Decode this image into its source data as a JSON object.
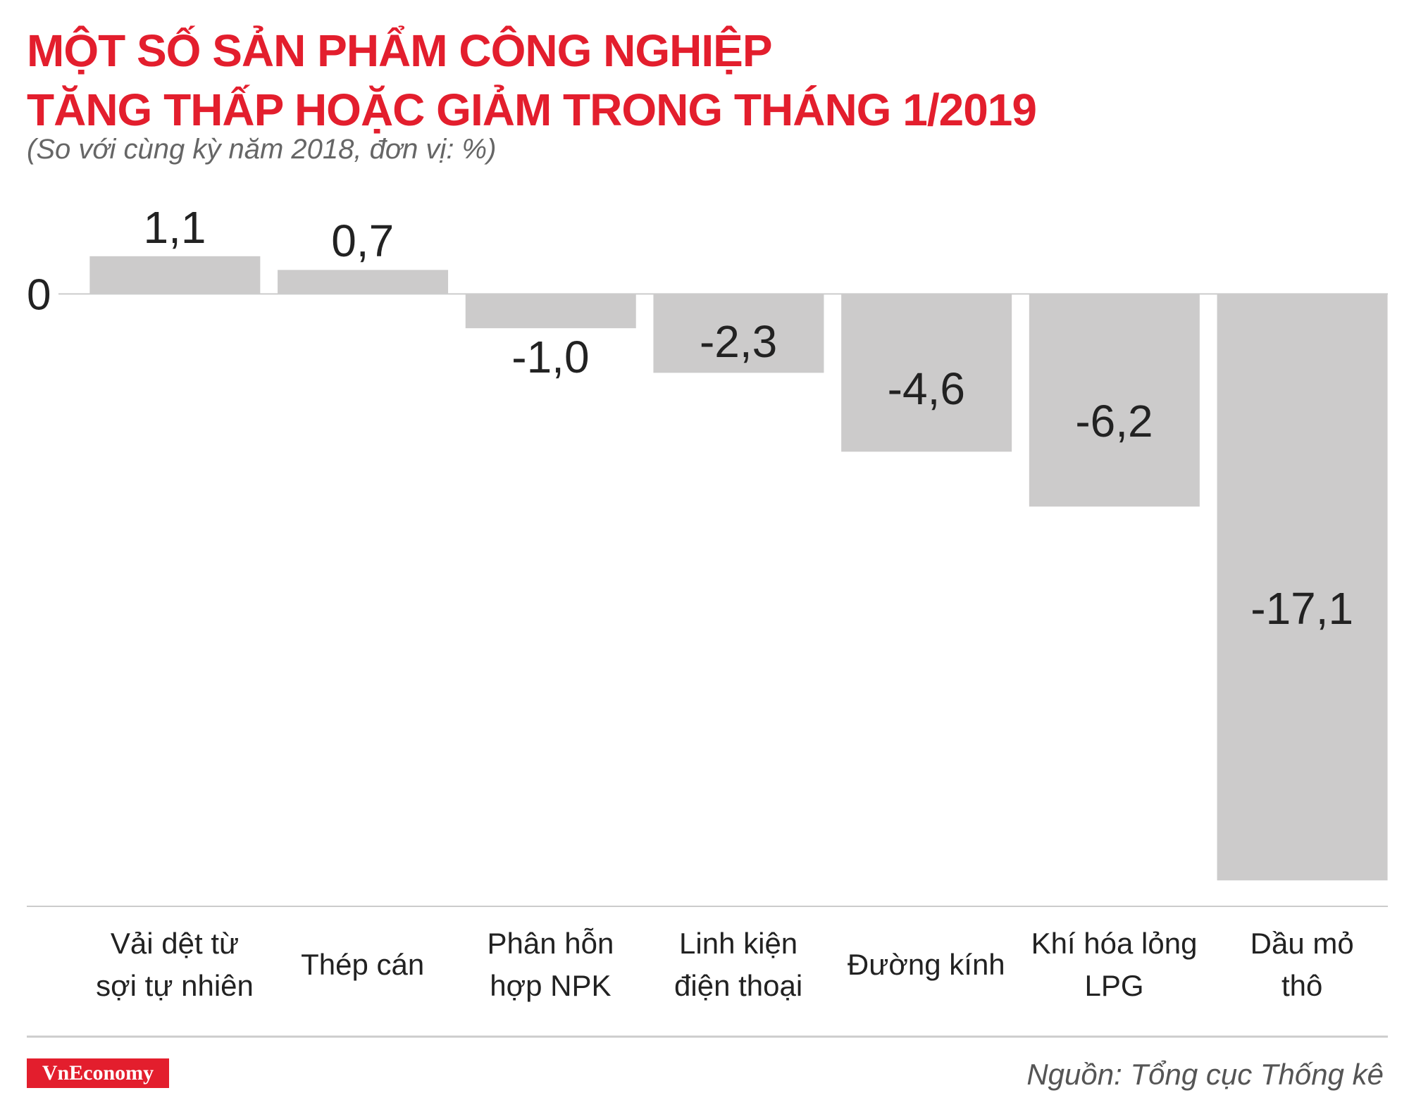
{
  "chart_data": {
    "type": "bar",
    "title": "MỘT SỐ SẢN PHẨM CÔNG NGHIỆP\nTĂNG THẤP HOẶC GIẢM TRONG THÁNG 1/2019",
    "subtitle": "(So với cùng kỳ năm 2018, đơn vị: %)",
    "categories": [
      "Vải dệt từ\nsợi tự nhiên",
      "Thép cán",
      "Phân hỗn\nhợp NPK",
      "Linh kiện\nđiện thoại",
      "Đường kính",
      "Khí hóa lỏng\nLPG",
      "Dầu mỏ\nthô"
    ],
    "values": [
      1.1,
      0.7,
      -1.0,
      -2.3,
      -4.6,
      -6.2,
      -17.1
    ],
    "value_labels": [
      "1,1",
      "0,7",
      "-1,0",
      "-2,3",
      "-4,6",
      "-6,2",
      "-17,1"
    ],
    "color": "#cccbcb",
    "ylim": [
      -18,
      2
    ],
    "yticks": [
      0
    ]
  },
  "footer": {
    "logo": "VnEconomy",
    "source": "Nguồn: Tổng cục Thống kê"
  }
}
